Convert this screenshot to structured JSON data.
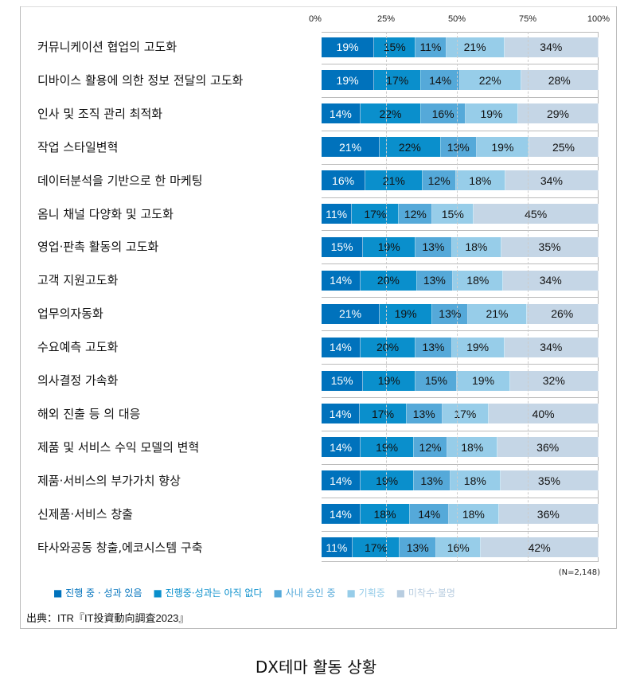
{
  "chart_data": {
    "type": "bar",
    "orientation": "horizontal-stacked-100",
    "title": "DX테마 활동 상황",
    "xticks": [
      "0%",
      "25%",
      "50%",
      "75%",
      "100%"
    ],
    "xlim": [
      0,
      100
    ],
    "legend_position": "bottom",
    "series": [
      {
        "name": "진행 중 · 성과 있음",
        "color": "#0072bc",
        "text": "#ffffff"
      },
      {
        "name": "진행중·성과는 아직 없다",
        "color": "#0a8fcc",
        "text": "#111111"
      },
      {
        "name": "사내 승인 중",
        "color": "#55a9d9",
        "text": "#111111"
      },
      {
        "name": "기획중",
        "color": "#97cde9",
        "text": "#111111"
      },
      {
        "name": "미착수·불명",
        "color": "#c5d6e6",
        "text": "#111111"
      }
    ],
    "categories": [
      "커뮤니케이션 협업의 고도화",
      "디바이스 활용에 의한 정보 전달의 고도화",
      "인사 및 조직 관리 최적화",
      "작업 스타일변혁",
      "데이터분석을 기반으로 한 마케팅",
      "옴니 채널 다양화 및 고도화",
      "영업·판촉 활동의 고도화",
      "고객 지원고도화",
      "업무의자동화",
      "수요예측 고도화",
      "의사결정 가속화",
      "해외 진출 등 의 대응",
      "제품 및 서비스 수익 모델의 변혁",
      "제품·서비스의 부가가치 향상",
      "신제품·서비스 창출",
      "타사와공동 창출,에코시스템 구축"
    ],
    "values": [
      [
        19,
        15,
        11,
        21,
        34
      ],
      [
        19,
        17,
        14,
        22,
        28
      ],
      [
        14,
        22,
        16,
        19,
        29
      ],
      [
        21,
        22,
        13,
        19,
        25
      ],
      [
        16,
        21,
        12,
        18,
        34
      ],
      [
        11,
        17,
        12,
        15,
        45
      ],
      [
        15,
        19,
        13,
        18,
        35
      ],
      [
        14,
        20,
        13,
        18,
        34
      ],
      [
        21,
        19,
        13,
        21,
        26
      ],
      [
        14,
        20,
        13,
        19,
        34
      ],
      [
        15,
        19,
        15,
        19,
        32
      ],
      [
        14,
        17,
        13,
        17,
        40
      ],
      [
        14,
        19,
        12,
        18,
        36
      ],
      [
        14,
        19,
        13,
        18,
        35
      ],
      [
        14,
        18,
        14,
        18,
        36
      ],
      [
        11,
        17,
        13,
        16,
        42
      ]
    ],
    "note": "(N=2,148)",
    "source": "出典：ITR『IT投資動向調査2023』"
  }
}
